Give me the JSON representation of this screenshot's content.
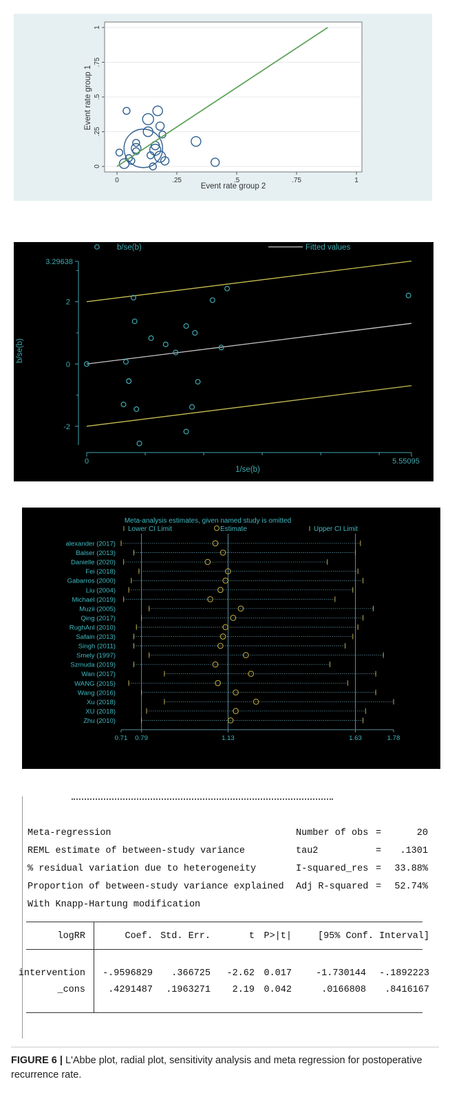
{
  "chart_data": [
    {
      "type": "scatter",
      "name": "labbe",
      "xlabel": "Event rate group 2",
      "ylabel": "Event rate group 1",
      "xlim": [
        0,
        1
      ],
      "ylim": [
        0,
        1
      ],
      "xticks": [
        "0",
        ".25",
        ".5",
        ".75",
        "1"
      ],
      "yticks": [
        "0",
        ".25",
        ".5",
        ".75",
        "1"
      ],
      "grid": true,
      "points": [
        {
          "x": 0.04,
          "y": 0.4,
          "s": 5
        },
        {
          "x": 0.17,
          "y": 0.4,
          "s": 7
        },
        {
          "x": 0.13,
          "y": 0.34,
          "s": 8
        },
        {
          "x": 0.18,
          "y": 0.29,
          "s": 6
        },
        {
          "x": 0.13,
          "y": 0.25,
          "s": 7
        },
        {
          "x": 0.19,
          "y": 0.23,
          "s": 5
        },
        {
          "x": 0.33,
          "y": 0.18,
          "s": 7
        },
        {
          "x": 0.08,
          "y": 0.17,
          "s": 5
        },
        {
          "x": 0.16,
          "y": 0.15,
          "s": 6
        },
        {
          "x": 0.11,
          "y": 0.13,
          "s": 28
        },
        {
          "x": 0.08,
          "y": 0.13,
          "s": 7
        },
        {
          "x": 0.16,
          "y": 0.12,
          "s": 8
        },
        {
          "x": 0.08,
          "y": 0.11,
          "s": 5
        },
        {
          "x": 0.01,
          "y": 0.1,
          "s": 5
        },
        {
          "x": 0.14,
          "y": 0.08,
          "s": 5
        },
        {
          "x": 0.18,
          "y": 0.07,
          "s": 8
        },
        {
          "x": 0.05,
          "y": 0.06,
          "s": 5
        },
        {
          "x": 0.2,
          "y": 0.04,
          "s": 6
        },
        {
          "x": 0.06,
          "y": 0.04,
          "s": 5
        },
        {
          "x": 0.41,
          "y": 0.03,
          "s": 6
        },
        {
          "x": 0.03,
          "y": 0.02,
          "s": 7
        },
        {
          "x": 0.15,
          "y": 0.0,
          "s": 5
        }
      ],
      "fit_line": {
        "x": [
          0,
          0.88
        ],
        "y": [
          0,
          1
        ],
        "color": "#5fa35a"
      }
    },
    {
      "type": "scatter",
      "name": "radial",
      "legend": [
        "b/se(b)",
        "Fitted values"
      ],
      "xlabel": "1/se(b)",
      "ylabel": "b/se(b)",
      "xlim": [
        0,
        5.55095
      ],
      "ylim": [
        -2.6,
        3.29638
      ],
      "xticks": [
        "0",
        "5.55095"
      ],
      "yticks": [
        "3.29638",
        "2",
        "0",
        "-2"
      ],
      "colors": {
        "background": "#000000",
        "points": "#3fa9b0",
        "fit": "#c8c8c8",
        "bounds": "#c8c050"
      },
      "points": [
        {
          "x": 0.0,
          "y": 0.0
        },
        {
          "x": 0.67,
          "y": 0.07
        },
        {
          "x": 0.8,
          "y": 2.13
        },
        {
          "x": 0.82,
          "y": 1.37
        },
        {
          "x": 0.72,
          "y": -0.55
        },
        {
          "x": 0.72,
          "y": -0.55
        },
        {
          "x": 0.63,
          "y": -1.3
        },
        {
          "x": 0.85,
          "y": -1.45
        },
        {
          "x": 0.9,
          "y": -2.55
        },
        {
          "x": 1.1,
          "y": 0.83
        },
        {
          "x": 1.35,
          "y": 0.63
        },
        {
          "x": 1.52,
          "y": 0.37
        },
        {
          "x": 1.7,
          "y": 1.22
        },
        {
          "x": 1.85,
          "y": 1.0
        },
        {
          "x": 1.9,
          "y": -0.57
        },
        {
          "x": 1.8,
          "y": -1.38
        },
        {
          "x": 1.7,
          "y": -2.17
        },
        {
          "x": 2.15,
          "y": 2.05
        },
        {
          "x": 2.4,
          "y": 2.42
        },
        {
          "x": 2.3,
          "y": 0.53
        },
        {
          "x": 5.5,
          "y": 2.2
        }
      ],
      "fit": {
        "intercept": 0.0,
        "slope": 0.235
      },
      "upper": {
        "intercept": 2.0,
        "slope": 0.235
      },
      "lower": {
        "intercept": -2.0,
        "slope": 0.235
      }
    },
    {
      "type": "scatter",
      "name": "sensitivity",
      "title": "Meta-analysis estimates, given named study is omitted",
      "legend": [
        "Lower CI Limit",
        "Estimate",
        "Upper CI Limit"
      ],
      "xlim": [
        0.71,
        1.78
      ],
      "xticks": [
        "0.71",
        "0.79",
        "1.13",
        "1.63",
        "1.78"
      ],
      "reference_lines": [
        0.79,
        1.13,
        1.63
      ],
      "colors": {
        "background": "#000000",
        "text": "#3fb8c0",
        "estimate": "#b8a640",
        "limits": "#c0b050",
        "grid": "#5a8fa0"
      },
      "studies": [
        {
          "name": "alexander (2017)",
          "lower": 0.71,
          "est": 1.08,
          "upper": 1.65
        },
        {
          "name": "Balser (2013)",
          "lower": 0.76,
          "est": 1.11,
          "upper": 1.63
        },
        {
          "name": "Danielle (2020)",
          "lower": 0.72,
          "est": 1.05,
          "upper": 1.52
        },
        {
          "name": "Fei (2018)",
          "lower": 0.78,
          "est": 1.13,
          "upper": 1.64
        },
        {
          "name": "Gabarros (2000)",
          "lower": 0.75,
          "est": 1.12,
          "upper": 1.66
        },
        {
          "name": "Liu (2004)",
          "lower": 0.74,
          "est": 1.1,
          "upper": 1.62
        },
        {
          "name": "Michael (2019)",
          "lower": 0.72,
          "est": 1.06,
          "upper": 1.55
        },
        {
          "name": "Muzii (2005)",
          "lower": 0.82,
          "est": 1.18,
          "upper": 1.7
        },
        {
          "name": "Qing (2017)",
          "lower": 0.79,
          "est": 1.15,
          "upper": 1.66
        },
        {
          "name": "RughAnl (2010)",
          "lower": 0.77,
          "est": 1.12,
          "upper": 1.64
        },
        {
          "name": "Safain (2013)",
          "lower": 0.76,
          "est": 1.11,
          "upper": 1.62
        },
        {
          "name": "Singh (2011)",
          "lower": 0.76,
          "est": 1.1,
          "upper": 1.59
        },
        {
          "name": "Smely (1997)",
          "lower": 0.82,
          "est": 1.2,
          "upper": 1.74
        },
        {
          "name": "Szmuda (2019)",
          "lower": 0.76,
          "est": 1.08,
          "upper": 1.53
        },
        {
          "name": "Wan (2017)",
          "lower": 0.88,
          "est": 1.22,
          "upper": 1.71
        },
        {
          "name": "WANG (2015)",
          "lower": 0.74,
          "est": 1.09,
          "upper": 1.6
        },
        {
          "name": "Wang (2016)",
          "lower": 0.79,
          "est": 1.16,
          "upper": 1.71
        },
        {
          "name": "Xu (2018)",
          "lower": 0.88,
          "est": 1.24,
          "upper": 1.78
        },
        {
          "name": "XU (2018)",
          "lower": 0.81,
          "est": 1.16,
          "upper": 1.67
        },
        {
          "name": "Zhu (2010)",
          "lower": 0.79,
          "est": 1.14,
          "upper": 1.66
        }
      ]
    }
  ],
  "meta_regression": {
    "header_left": [
      "Meta-regression",
      "REML estimate of between-study variance",
      "% residual variation due to heterogeneity",
      "Proportion of between-study variance explained",
      "With Knapp-Hartung modification"
    ],
    "header_right": [
      {
        "label": "Number of obs",
        "eq": "=",
        "value": "20"
      },
      {
        "label": "tau2",
        "eq": "=",
        "value": ".1301"
      },
      {
        "label": "I-squared_res",
        "eq": "=",
        "value": "33.88%"
      },
      {
        "label": "Adj R-squared",
        "eq": "=",
        "value": "52.74%"
      }
    ],
    "columns": [
      "logRR",
      "Coef.",
      "Std. Err.",
      "t",
      "P>|t|",
      "[95% Conf. Interval]"
    ],
    "rows": [
      [
        "intervention",
        "-.9596829",
        ".366725",
        "-2.62",
        "0.017",
        "-1.730144",
        "-.1892223"
      ],
      [
        "_cons",
        ".4291487",
        ".1963271",
        "2.19",
        "0.042",
        ".0166808",
        ".8416167"
      ]
    ]
  },
  "caption": {
    "label": "FIGURE 6 |",
    "text": "L'Abbe plot, radial plot, sensitivity analysis and meta regression for postoperative recurrence rate."
  }
}
